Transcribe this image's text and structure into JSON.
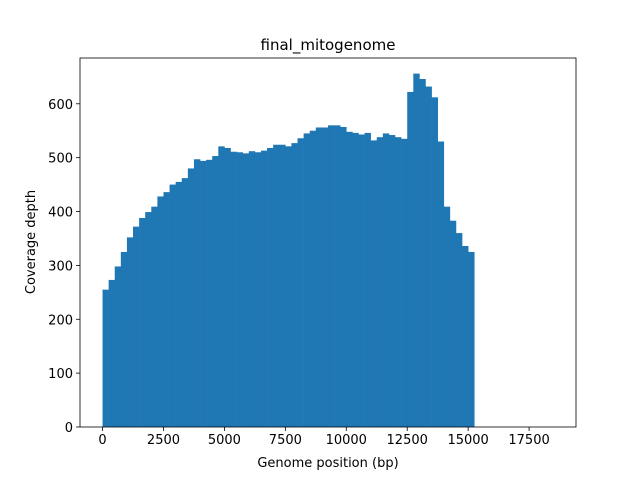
{
  "chart_data": {
    "type": "bar",
    "title": "final_mitogenome",
    "xlabel": "Genome position (bp)",
    "ylabel": "Coverage depth",
    "xlim": [
      -925,
      19425
    ],
    "ylim": [
      0,
      685
    ],
    "bar_color": "#1f77b4",
    "grid": false,
    "bin_width": 250,
    "x_start": 0,
    "xticks": [
      0,
      2500,
      5000,
      7500,
      10000,
      12500,
      15000,
      17500
    ],
    "yticks": [
      0,
      100,
      200,
      300,
      400,
      500,
      600
    ],
    "values": [
      255,
      273,
      298,
      325,
      352,
      372,
      388,
      399,
      409,
      428,
      436,
      450,
      455,
      462,
      480,
      497,
      494,
      496,
      503,
      521,
      518,
      511,
      510,
      508,
      512,
      510,
      513,
      518,
      524,
      524,
      521,
      527,
      536,
      545,
      550,
      556,
      556,
      560,
      560,
      557,
      548,
      546,
      543,
      546,
      532,
      538,
      545,
      542,
      538,
      535,
      622,
      656,
      646,
      632,
      612,
      530,
      409,
      383,
      360,
      336,
      325
    ]
  }
}
